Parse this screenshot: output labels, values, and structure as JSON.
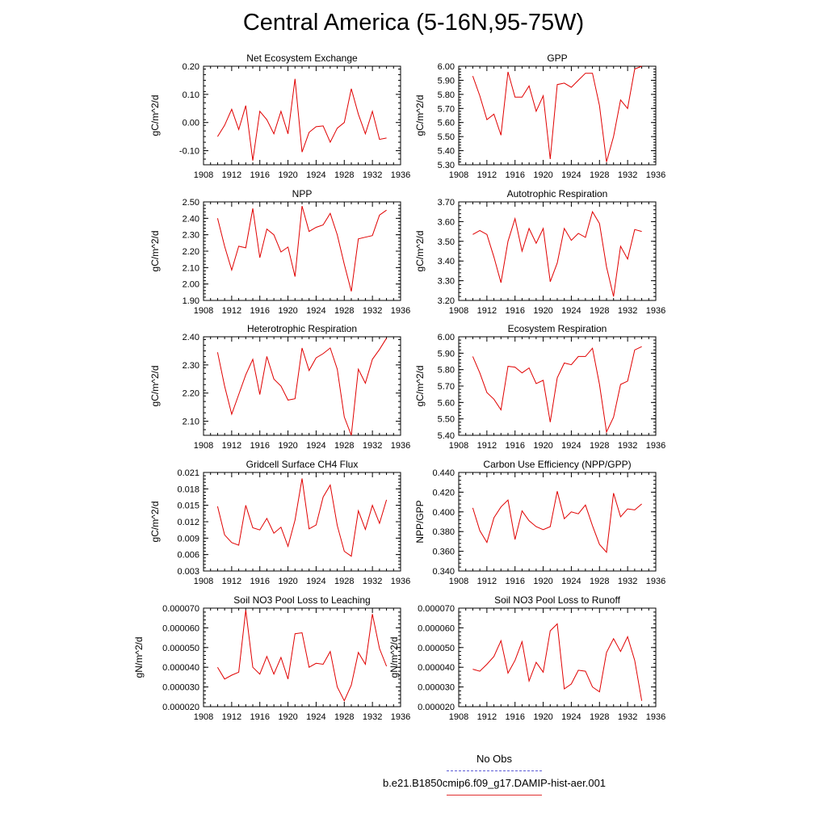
{
  "title": "Central America (5-16N,95-75W)",
  "legend": {
    "entries": [
      {
        "label": "No Obs",
        "color": "#5b5bd6",
        "style": "dashed"
      },
      {
        "label": "b.e21.B1850cmip6.f09_g17.DAMIP-hist-aer.001",
        "color": "#e03030",
        "style": "solid"
      }
    ]
  },
  "colors": {
    "series": "#e00000",
    "axis": "#000000"
  },
  "chart_data": [
    {
      "type": "line",
      "title": "Net Ecosystem Exchange",
      "ylabel": "gC/m^2/d",
      "xlabel": "",
      "xlim": [
        1908,
        1936
      ],
      "xticks": [
        "1908",
        "1912",
        "1916",
        "1920",
        "1924",
        "1928",
        "1932",
        "1936"
      ],
      "ylim": [
        -0.15,
        0.2
      ],
      "yticks": [
        "0.20",
        "0.10",
        "0.00",
        "-0.10"
      ],
      "ytick_values": [
        0.2,
        0.1,
        0.0,
        -0.1
      ],
      "x": [
        1910,
        1911,
        1912,
        1913,
        1914,
        1915,
        1916,
        1917,
        1918,
        1919,
        1920,
        1921,
        1922,
        1923,
        1924,
        1925,
        1926,
        1927,
        1928,
        1929,
        1930,
        1931,
        1932,
        1933,
        1934
      ],
      "series": [
        {
          "values": [
            -0.05,
            -0.01,
            0.047,
            -0.025,
            0.06,
            -0.135,
            0.04,
            0.01,
            -0.04,
            0.04,
            -0.04,
            0.155,
            -0.105,
            -0.035,
            -0.015,
            -0.012,
            -0.07,
            -0.02,
            0.0,
            0.12,
            0.03,
            -0.04,
            0.04,
            -0.06,
            -0.055
          ]
        }
      ]
    },
    {
      "type": "line",
      "title": "GPP",
      "ylabel": "gC/m^2/d",
      "xlabel": "",
      "xlim": [
        1908,
        1936
      ],
      "xticks": [
        "1908",
        "1912",
        "1916",
        "1920",
        "1924",
        "1928",
        "1932",
        "1936"
      ],
      "ylim": [
        5.3,
        6.0
      ],
      "yticks": [
        "6.00",
        "5.90",
        "5.80",
        "5.70",
        "5.60",
        "5.50",
        "5.40",
        "5.30"
      ],
      "ytick_values": [
        6.0,
        5.9,
        5.8,
        5.7,
        5.6,
        5.5,
        5.4,
        5.3
      ],
      "x": [
        1910,
        1911,
        1912,
        1913,
        1914,
        1915,
        1916,
        1917,
        1918,
        1919,
        1920,
        1921,
        1922,
        1923,
        1924,
        1925,
        1926,
        1927,
        1928,
        1929,
        1930,
        1931,
        1932,
        1933,
        1934
      ],
      "series": [
        {
          "values": [
            5.93,
            5.79,
            5.62,
            5.66,
            5.51,
            5.96,
            5.78,
            5.78,
            5.86,
            5.68,
            5.79,
            5.34,
            5.87,
            5.88,
            5.85,
            5.9,
            5.95,
            5.95,
            5.72,
            5.32,
            5.5,
            5.76,
            5.7,
            5.98,
            6.0
          ]
        }
      ]
    },
    {
      "type": "line",
      "title": "NPP",
      "ylabel": "gC/m^2/d",
      "xlabel": "",
      "xlim": [
        1908,
        1936
      ],
      "xticks": [
        "1908",
        "1912",
        "1916",
        "1920",
        "1924",
        "1928",
        "1932",
        "1936"
      ],
      "ylim": [
        1.9,
        2.5
      ],
      "yticks": [
        "2.50",
        "2.40",
        "2.30",
        "2.20",
        "2.10",
        "2.00",
        "1.90"
      ],
      "ytick_values": [
        2.5,
        2.4,
        2.3,
        2.2,
        2.1,
        2.0,
        1.9
      ],
      "x": [
        1910,
        1911,
        1912,
        1913,
        1914,
        1915,
        1916,
        1917,
        1918,
        1919,
        1920,
        1921,
        1922,
        1923,
        1924,
        1925,
        1926,
        1927,
        1928,
        1929,
        1930,
        1931,
        1932,
        1933,
        1934
      ],
      "series": [
        {
          "values": [
            2.4,
            2.23,
            2.085,
            2.23,
            2.22,
            2.46,
            2.16,
            2.335,
            2.3,
            2.195,
            2.225,
            2.045,
            2.475,
            2.32,
            2.345,
            2.36,
            2.43,
            2.3,
            2.12,
            1.955,
            2.275,
            2.285,
            2.295,
            2.42,
            2.45
          ]
        }
      ]
    },
    {
      "type": "line",
      "title": "Autotrophic Respiration",
      "ylabel": "gC/m^2/d",
      "xlabel": "",
      "xlim": [
        1908,
        1936
      ],
      "xticks": [
        "1908",
        "1912",
        "1916",
        "1920",
        "1924",
        "1928",
        "1932",
        "1936"
      ],
      "ylim": [
        3.2,
        3.7
      ],
      "yticks": [
        "3.70",
        "3.60",
        "3.50",
        "3.40",
        "3.30",
        "3.20"
      ],
      "ytick_values": [
        3.7,
        3.6,
        3.5,
        3.4,
        3.3,
        3.2
      ],
      "x": [
        1910,
        1911,
        1912,
        1913,
        1914,
        1915,
        1916,
        1917,
        1918,
        1919,
        1920,
        1921,
        1922,
        1923,
        1924,
        1925,
        1926,
        1927,
        1928,
        1929,
        1930,
        1931,
        1932,
        1933,
        1934
      ],
      "series": [
        {
          "values": [
            3.535,
            3.555,
            3.535,
            3.42,
            3.29,
            3.5,
            3.615,
            3.45,
            3.565,
            3.49,
            3.565,
            3.295,
            3.39,
            3.565,
            3.505,
            3.54,
            3.52,
            3.65,
            3.59,
            3.37,
            3.22,
            3.475,
            3.41,
            3.56,
            3.55
          ]
        }
      ]
    },
    {
      "type": "line",
      "title": "Heterotrophic Respiration",
      "ylabel": "gC/m^2/d",
      "xlabel": "",
      "xlim": [
        1908,
        1936
      ],
      "xticks": [
        "1908",
        "1912",
        "1916",
        "1920",
        "1924",
        "1928",
        "1932",
        "1936"
      ],
      "ylim": [
        2.05,
        2.4
      ],
      "yticks": [
        "2.40",
        "2.30",
        "2.20",
        "2.10"
      ],
      "ytick_values": [
        2.4,
        2.3,
        2.2,
        2.1
      ],
      "x": [
        1910,
        1911,
        1912,
        1913,
        1914,
        1915,
        1916,
        1917,
        1918,
        1919,
        1920,
        1921,
        1922,
        1923,
        1924,
        1925,
        1926,
        1927,
        1928,
        1929,
        1930,
        1931,
        1932,
        1933,
        1934
      ],
      "series": [
        {
          "values": [
            2.345,
            2.225,
            2.125,
            2.195,
            2.265,
            2.32,
            2.195,
            2.33,
            2.25,
            2.225,
            2.175,
            2.18,
            2.36,
            2.28,
            2.325,
            2.34,
            2.36,
            2.285,
            2.115,
            2.05,
            2.285,
            2.235,
            2.32,
            2.355,
            2.395
          ]
        }
      ]
    },
    {
      "type": "line",
      "title": "Ecosystem Respiration",
      "ylabel": "gC/m^2/d",
      "xlabel": "",
      "xlim": [
        1908,
        1936
      ],
      "xticks": [
        "1908",
        "1912",
        "1916",
        "1920",
        "1924",
        "1928",
        "1932",
        "1936"
      ],
      "ylim": [
        5.4,
        6.0
      ],
      "yticks": [
        "6.00",
        "5.90",
        "5.80",
        "5.70",
        "5.60",
        "5.50",
        "5.40"
      ],
      "ytick_values": [
        6.0,
        5.9,
        5.8,
        5.7,
        5.6,
        5.5,
        5.4
      ],
      "x": [
        1910,
        1911,
        1912,
        1913,
        1914,
        1915,
        1916,
        1917,
        1918,
        1919,
        1920,
        1921,
        1922,
        1923,
        1924,
        1925,
        1926,
        1927,
        1928,
        1929,
        1930,
        1931,
        1932,
        1933,
        1934
      ],
      "series": [
        {
          "values": [
            5.88,
            5.78,
            5.66,
            5.62,
            5.555,
            5.82,
            5.815,
            5.78,
            5.81,
            5.715,
            5.735,
            5.48,
            5.75,
            5.84,
            5.83,
            5.88,
            5.88,
            5.93,
            5.71,
            5.42,
            5.51,
            5.71,
            5.73,
            5.92,
            5.94
          ]
        }
      ]
    },
    {
      "type": "line",
      "title": "Gridcell Surface CH4 Flux",
      "ylabel": "gC/m^2/d",
      "xlabel": "",
      "xlim": [
        1908,
        1936
      ],
      "xticks": [
        "1908",
        "1912",
        "1916",
        "1920",
        "1924",
        "1928",
        "1932",
        "1936"
      ],
      "ylim": [
        0.003,
        0.021
      ],
      "yticks": [
        "0.021",
        "0.018",
        "0.015",
        "0.012",
        "0.009",
        "0.006",
        "0.003"
      ],
      "ytick_values": [
        0.021,
        0.018,
        0.015,
        0.012,
        0.009,
        0.006,
        0.003
      ],
      "x": [
        1910,
        1911,
        1912,
        1913,
        1914,
        1915,
        1916,
        1917,
        1918,
        1919,
        1920,
        1921,
        1922,
        1923,
        1924,
        1925,
        1926,
        1927,
        1928,
        1929,
        1930,
        1931,
        1932,
        1933,
        1934
      ],
      "series": [
        {
          "values": [
            0.0148,
            0.0096,
            0.0082,
            0.0077,
            0.015,
            0.0109,
            0.0105,
            0.0126,
            0.0099,
            0.011,
            0.0075,
            0.0123,
            0.0199,
            0.0107,
            0.0114,
            0.0165,
            0.0187,
            0.0113,
            0.0066,
            0.0057,
            0.014,
            0.0106,
            0.015,
            0.0117,
            0.016
          ]
        }
      ]
    },
    {
      "type": "line",
      "title": "Carbon Use Efficiency (NPP/GPP)",
      "ylabel": "NPP/GPP",
      "xlabel": "",
      "xlim": [
        1908,
        1936
      ],
      "xticks": [
        "1908",
        "1912",
        "1916",
        "1920",
        "1924",
        "1928",
        "1932",
        "1936"
      ],
      "ylim": [
        0.34,
        0.44
      ],
      "yticks": [
        "0.440",
        "0.420",
        "0.400",
        "0.380",
        "0.360",
        "0.340"
      ],
      "ytick_values": [
        0.44,
        0.42,
        0.4,
        0.38,
        0.36,
        0.34
      ],
      "x": [
        1910,
        1911,
        1912,
        1913,
        1914,
        1915,
        1916,
        1917,
        1918,
        1919,
        1920,
        1921,
        1922,
        1923,
        1924,
        1925,
        1926,
        1927,
        1928,
        1929,
        1930,
        1931,
        1932,
        1933,
        1934
      ],
      "series": [
        {
          "values": [
            0.404,
            0.381,
            0.369,
            0.394,
            0.405,
            0.412,
            0.372,
            0.401,
            0.391,
            0.385,
            0.382,
            0.385,
            0.421,
            0.393,
            0.4,
            0.398,
            0.407,
            0.386,
            0.367,
            0.359,
            0.419,
            0.395,
            0.403,
            0.402,
            0.408
          ]
        }
      ]
    },
    {
      "type": "line",
      "title": "Soil NO3 Pool Loss to Leaching",
      "ylabel": "gN/m^2/d",
      "xlabel": "",
      "xlim": [
        1908,
        1936
      ],
      "xticks": [
        "1908",
        "1912",
        "1916",
        "1920",
        "1924",
        "1928",
        "1932",
        "1936"
      ],
      "ylim": [
        2e-05,
        7e-05
      ],
      "yticks": [
        "0.000070",
        "0.000060",
        "0.000050",
        "0.000040",
        "0.000030",
        "0.000020"
      ],
      "ytick_values": [
        7e-05,
        6e-05,
        5e-05,
        4e-05,
        3e-05,
        2e-05
      ],
      "x": [
        1910,
        1911,
        1912,
        1913,
        1914,
        1915,
        1916,
        1917,
        1918,
        1919,
        1920,
        1921,
        1922,
        1923,
        1924,
        1925,
        1926,
        1927,
        1928,
        1929,
        1930,
        1931,
        1932,
        1933,
        1934
      ],
      "series": [
        {
          "values": [
            4e-05,
            3.4e-05,
            3.6e-05,
            3.75e-05,
            6.9e-05,
            4e-05,
            3.65e-05,
            4.55e-05,
            3.65e-05,
            4.5e-05,
            3.4e-05,
            5.7e-05,
            5.75e-05,
            4e-05,
            4.2e-05,
            4.15e-05,
            4.8e-05,
            3e-05,
            2.3e-05,
            3.1e-05,
            4.75e-05,
            4.15e-05,
            6.7e-05,
            4.95e-05,
            4.05e-05
          ]
        }
      ]
    },
    {
      "type": "line",
      "title": "Soil NO3 Pool Loss to Runoff",
      "ylabel": "gN/m^2/d",
      "xlabel": "",
      "xlim": [
        1908,
        1936
      ],
      "xticks": [
        "1908",
        "1912",
        "1916",
        "1920",
        "1924",
        "1928",
        "1932",
        "1936"
      ],
      "ylim": [
        2e-05,
        7e-05
      ],
      "yticks": [
        "0.000070",
        "0.000060",
        "0.000050",
        "0.000040",
        "0.000030",
        "0.000020"
      ],
      "ytick_values": [
        7e-05,
        6e-05,
        5e-05,
        4e-05,
        3e-05,
        2e-05
      ],
      "x": [
        1910,
        1911,
        1912,
        1913,
        1914,
        1915,
        1916,
        1917,
        1918,
        1919,
        1920,
        1921,
        1922,
        1923,
        1924,
        1925,
        1926,
        1927,
        1928,
        1929,
        1930,
        1931,
        1932,
        1933,
        1934
      ],
      "series": [
        {
          "values": [
            3.9e-05,
            3.8e-05,
            4.15e-05,
            4.55e-05,
            5.35e-05,
            3.7e-05,
            4.35e-05,
            5.3e-05,
            3.3e-05,
            4.25e-05,
            3.75e-05,
            5.85e-05,
            6.2e-05,
            2.9e-05,
            3.15e-05,
            3.85e-05,
            3.8e-05,
            3e-05,
            2.75e-05,
            4.75e-05,
            5.45e-05,
            4.8e-05,
            5.55e-05,
            4.35e-05,
            2.3e-05
          ]
        }
      ]
    }
  ]
}
